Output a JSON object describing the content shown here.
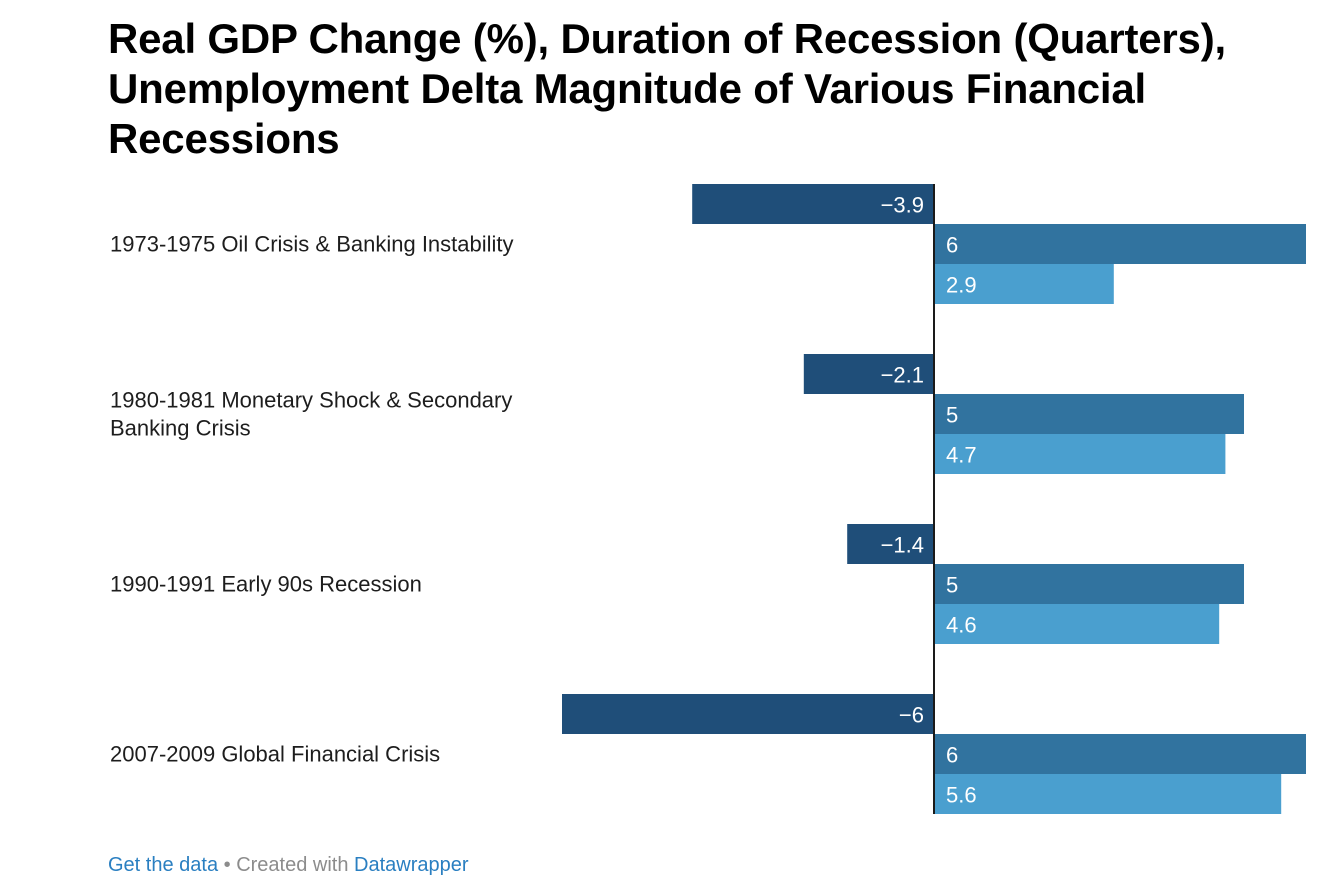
{
  "chart_data": {
    "type": "bar",
    "title": "Real GDP Change (%), Duration of Recession (Quarters), Unemployment Delta Magnitude of Various Financial Recessions",
    "categories": [
      [
        "1973-1975 Oil Crisis & Banking Instability"
      ],
      [
        "1980-1981 Monetary Shock & Secondary",
        "Banking Crisis"
      ],
      [
        "1990-1991 Early 90s Recession"
      ],
      [
        "2007-2009 Global Financial Crisis"
      ]
    ],
    "series": [
      {
        "values": [
          -3.9,
          -2.1,
          -1.4,
          -6
        ],
        "color": "#1f4e79"
      },
      {
        "values": [
          6,
          5,
          5,
          6
        ],
        "color": "#31739f"
      },
      {
        "values": [
          2.9,
          4.7,
          4.6,
          5.6
        ],
        "color": "#4a9fcf"
      }
    ],
    "labels": [
      [
        "−3.9",
        "6",
        "2.9"
      ],
      [
        "−2.1",
        "5",
        "4.7"
      ],
      [
        "−1.4",
        "5",
        "4.6"
      ],
      [
        "−6",
        "6",
        "5.6"
      ]
    ],
    "xlim": [
      -6,
      6
    ],
    "orientation": "horizontal",
    "grid": false
  },
  "footer": {
    "get_data": "Get the data",
    "separator": " • Created with ",
    "datawrapper": "Datawrapper"
  }
}
